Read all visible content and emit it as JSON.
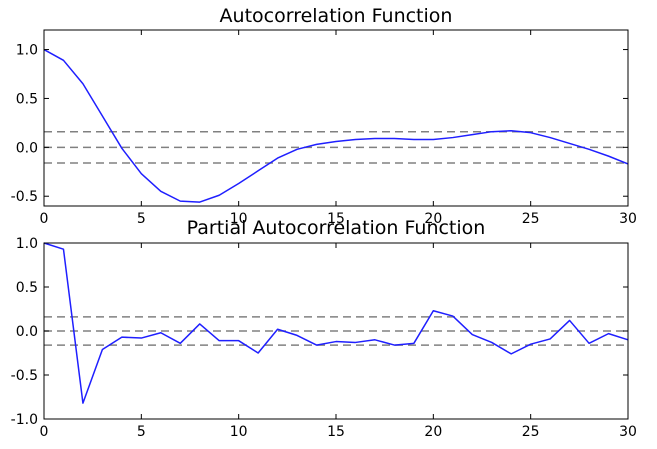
{
  "chart_data": [
    {
      "type": "line",
      "title": "Autocorrelation Function",
      "xlabel": "",
      "ylabel": "",
      "xlim": [
        0,
        30
      ],
      "ylim": [
        -0.6,
        1.2
      ],
      "xticks": [
        0,
        5,
        10,
        15,
        20,
        25,
        30
      ],
      "yticks": [
        1.0,
        0.5,
        0.0,
        -0.5
      ],
      "ytick_labels": [
        "1.0",
        "0.5",
        "0.0",
        "-0.5"
      ],
      "reference_lines": [
        0.16,
        0.0,
        -0.16
      ],
      "grid": false,
      "series": [
        {
          "color": "#1f1fff",
          "x": [
            0,
            1,
            2,
            3,
            4,
            5,
            6,
            7,
            8,
            9,
            10,
            11,
            12,
            13,
            14,
            15,
            16,
            17,
            18,
            19,
            20,
            21,
            22,
            23,
            24,
            25,
            26,
            27,
            28,
            29,
            30
          ],
          "y": [
            1.0,
            0.89,
            0.65,
            0.32,
            -0.01,
            -0.27,
            -0.45,
            -0.55,
            -0.56,
            -0.49,
            -0.37,
            -0.24,
            -0.11,
            -0.02,
            0.03,
            0.06,
            0.08,
            0.09,
            0.09,
            0.08,
            0.08,
            0.1,
            0.13,
            0.16,
            0.17,
            0.15,
            0.1,
            0.04,
            -0.02,
            -0.09,
            -0.17
          ]
        }
      ]
    },
    {
      "type": "line",
      "title": "Partial Autocorrelation Function",
      "xlabel": "",
      "ylabel": "",
      "xlim": [
        0,
        30
      ],
      "ylim": [
        -1.0,
        1.0
      ],
      "xticks": [
        0,
        5,
        10,
        15,
        20,
        25,
        30
      ],
      "yticks": [
        1.0,
        0.5,
        0.0,
        -0.5,
        -1.0
      ],
      "ytick_labels": [
        "1.0",
        "0.5",
        "0.0",
        "-0.5",
        "-1.0"
      ],
      "reference_lines": [
        0.16,
        0.0,
        -0.16
      ],
      "grid": false,
      "series": [
        {
          "color": "#1f1fff",
          "x": [
            0,
            1,
            2,
            3,
            4,
            5,
            6,
            7,
            8,
            9,
            10,
            11,
            12,
            13,
            14,
            15,
            16,
            17,
            18,
            19,
            20,
            21,
            22,
            23,
            24,
            25,
            26,
            27,
            28,
            29,
            30
          ],
          "y": [
            1.0,
            0.93,
            -0.82,
            -0.21,
            -0.07,
            -0.08,
            -0.02,
            -0.14,
            0.08,
            -0.11,
            -0.11,
            -0.25,
            0.02,
            -0.05,
            -0.16,
            -0.12,
            -0.13,
            -0.1,
            -0.16,
            -0.14,
            0.23,
            0.17,
            -0.04,
            -0.13,
            -0.26,
            -0.15,
            -0.09,
            0.12,
            -0.14,
            -0.03,
            -0.1
          ]
        }
      ]
    }
  ]
}
